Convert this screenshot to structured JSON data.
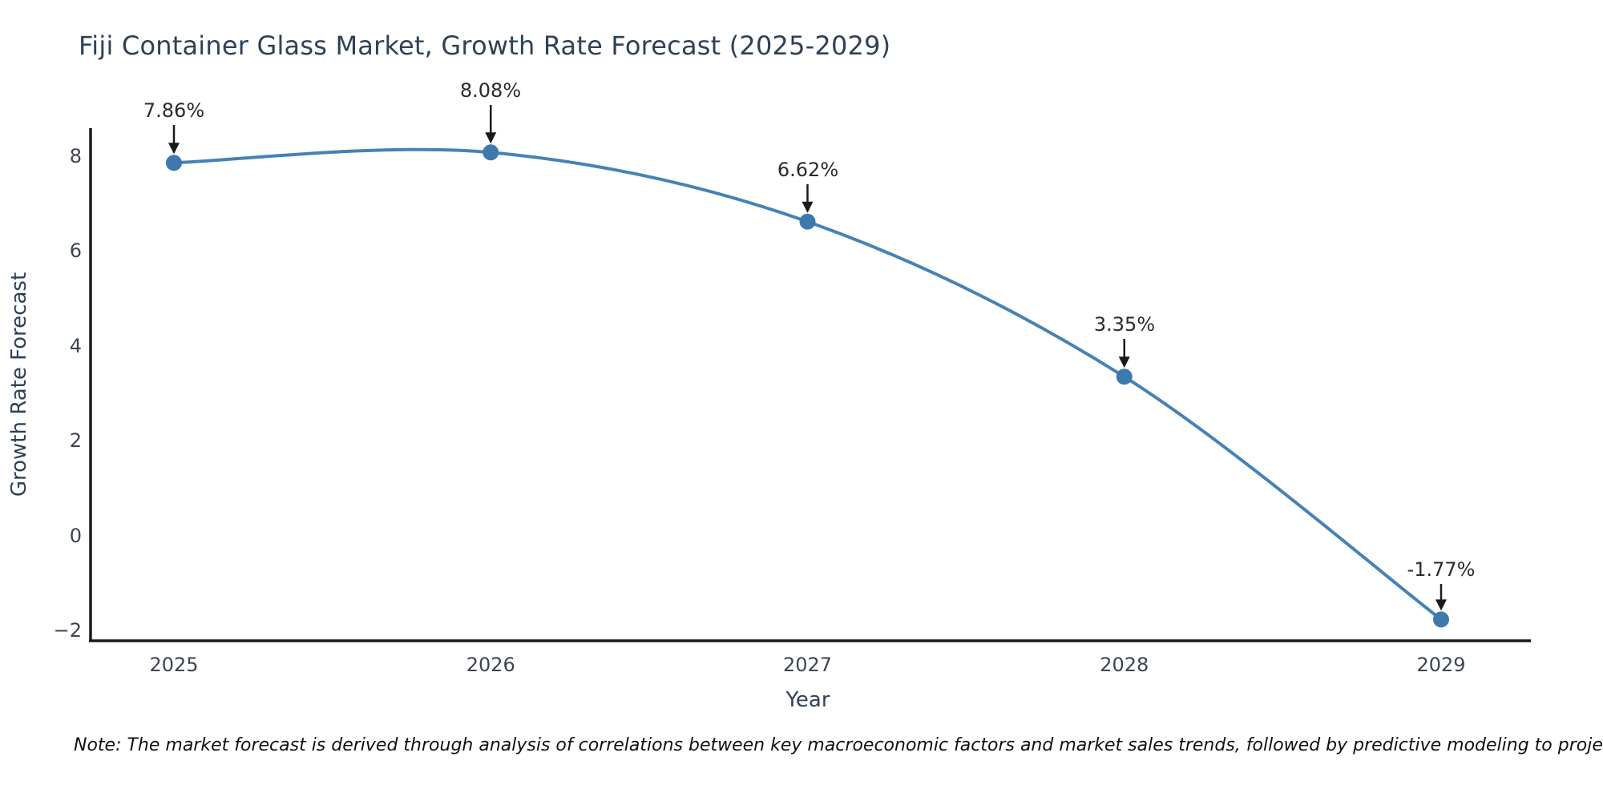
{
  "title": "Fiji Container Glass Market, Growth Rate Forecast (2025-2029)",
  "note": "Note: The market forecast is derived through analysis of correlations between key macroeconomic factors and market sales trends, followed by predictive modeling to project future sales",
  "chart_data": {
    "type": "line",
    "title": "Fiji Container Glass Market, Growth Rate Forecast (2025-2029)",
    "xlabel": "Year",
    "ylabel": "Growth Rate Forecast",
    "x": [
      2025,
      2026,
      2027,
      2028,
      2029
    ],
    "values": [
      7.86,
      8.08,
      6.62,
      3.35,
      -1.77
    ],
    "point_labels": [
      "7.86%",
      "8.08%",
      "6.62%",
      "3.35%",
      "-1.77%"
    ],
    "xtick_labels": [
      "2025",
      "2026",
      "2027",
      "2028",
      "2029"
    ],
    "ytick_labels": [
      "8",
      "6",
      "4",
      "2",
      "0",
      "−2"
    ],
    "yticks": [
      8,
      6,
      4,
      2,
      0,
      -2
    ],
    "ylim": [
      -2.25,
      8.6
    ],
    "grid": false,
    "legend": "none",
    "line_color": "#4682b4",
    "marker_color": "#3d79ad",
    "axis_color": "#1a1a1a",
    "annotation_arrow_color": "#1a1a1a"
  }
}
